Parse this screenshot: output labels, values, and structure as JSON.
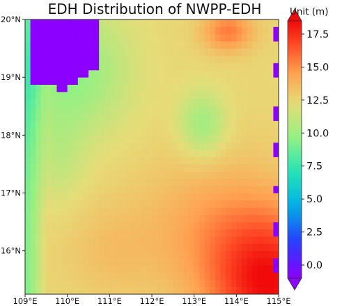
{
  "chart_data": {
    "type": "heatmap",
    "title": "EDH Distribution of NWPP-EDH",
    "x_ticks": [
      {
        "value": 109,
        "label": "109°E"
      },
      {
        "value": 110,
        "label": "110°E"
      },
      {
        "value": 111,
        "label": "111°E"
      },
      {
        "value": 112,
        "label": "112°E"
      },
      {
        "value": 113,
        "label": "113°E"
      },
      {
        "value": 114,
        "label": "114°E"
      },
      {
        "value": 115,
        "label": "115°E"
      }
    ],
    "y_ticks": [
      {
        "value": 20,
        "label": "20°N"
      },
      {
        "value": 19,
        "label": "19°N"
      },
      {
        "value": 18,
        "label": "18°N"
      },
      {
        "value": 17,
        "label": "17°N"
      },
      {
        "value": 16,
        "label": "16°N"
      }
    ],
    "xlim": [
      109,
      115
    ],
    "ylim": [
      15.25,
      20
    ],
    "colorbar": {
      "label": "Unit (m)",
      "range": [
        -1.0,
        18.5
      ],
      "ticks": [
        "0.0",
        "2.5",
        "5.0",
        "7.5",
        "10.0",
        "12.5",
        "15.0",
        "17.5"
      ],
      "colormap": "rainbow"
    },
    "grid_resolution_deg": 0.125,
    "field": {
      "background_edh": 12.5,
      "features": [
        {
          "kind": "low_blob",
          "region": "northwest",
          "lon": [
            109.15,
            110.75
          ],
          "lat": [
            18.55,
            20.0
          ],
          "edh": -1.0
        },
        {
          "kind": "low_ring",
          "region": "northwest",
          "edh": 9.5
        },
        {
          "kind": "west_coast_band",
          "lon": [
            109.0,
            109.5
          ],
          "lat": [
            15.25,
            18.6
          ],
          "edh": 9.0
        },
        {
          "kind": "local_minimum",
          "lon": 113.2,
          "lat": 18.2,
          "edh": 10.0
        },
        {
          "kind": "local_maximum",
          "lon": 113.8,
          "lat": 19.8,
          "edh": 15.5
        },
        {
          "kind": "high_region",
          "region": "southeast",
          "lon": 114.8,
          "lat": 15.4,
          "edh": 18.0
        },
        {
          "kind": "edge_gaps",
          "lon": 115.0,
          "edh": -1.0
        }
      ]
    }
  }
}
